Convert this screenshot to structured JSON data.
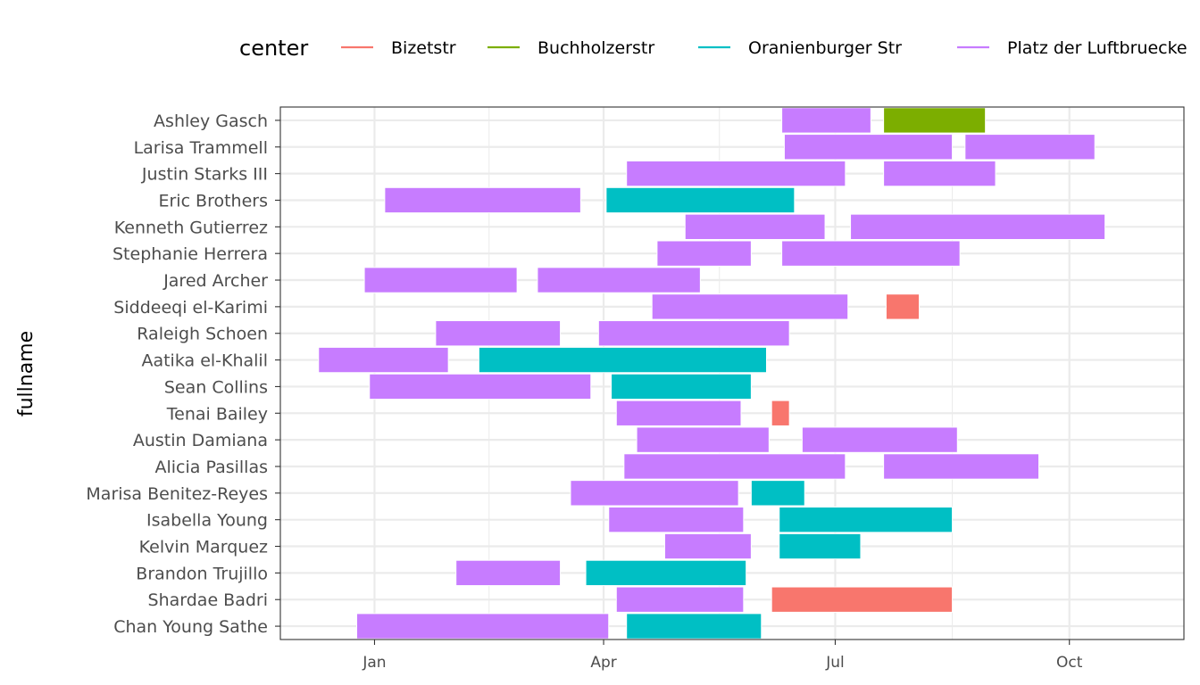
{
  "chart_data": {
    "type": "gantt",
    "ylabel": "fullname",
    "legend": {
      "title": "center",
      "position": "top",
      "entries": [
        {
          "name": "Bizetstr",
          "color": "#F8766D"
        },
        {
          "name": "Buchholzerstr",
          "color": "#7CAE00"
        },
        {
          "name": "Oranienburger Str",
          "color": "#00BFC4"
        },
        {
          "name": "Platz der Luftbruecke",
          "color": "#C77CFF"
        }
      ]
    },
    "x_ticks": [
      {
        "label": "Jan",
        "date": "2021-01-01"
      },
      {
        "label": "Apr",
        "date": "2021-04-01"
      },
      {
        "label": "Jul",
        "date": "2021-07-01"
      },
      {
        "label": "Oct",
        "date": "2021-10-01"
      }
    ],
    "xlim": [
      "2020-11-25",
      "2021-11-15"
    ],
    "grid": true,
    "categories": [
      "Ashley Gasch",
      "Larisa Trammell",
      "Justin Starks III",
      "Eric Brothers",
      "Kenneth Gutierrez",
      "Stephanie Herrera",
      "Jared Archer",
      "Siddeeqi el-Karimi",
      "Raleigh Schoen",
      "Aatika el-Khalil",
      "Sean Collins",
      "Tenai Bailey",
      "Austin Damiana",
      "Alicia Pasillas",
      "Marisa Benitez-Reyes",
      "Isabella Young",
      "Kelvin Marquez",
      "Brandon Trujillo",
      "Shardae Badri",
      "Chan Young Sathe"
    ],
    "tasks": [
      {
        "name": "Ashley Gasch",
        "center": "Platz der Luftbruecke",
        "start": "2021-06-10",
        "end": "2021-07-15"
      },
      {
        "name": "Ashley Gasch",
        "center": "Buchholzerstr",
        "start": "2021-07-20",
        "end": "2021-08-29"
      },
      {
        "name": "Larisa Trammell",
        "center": "Platz der Luftbruecke",
        "start": "2021-06-11",
        "end": "2021-08-16"
      },
      {
        "name": "Larisa Trammell",
        "center": "Platz der Luftbruecke",
        "start": "2021-08-21",
        "end": "2021-10-11"
      },
      {
        "name": "Justin Starks III",
        "center": "Platz der Luftbruecke",
        "start": "2021-04-10",
        "end": "2021-07-05"
      },
      {
        "name": "Justin Starks III",
        "center": "Platz der Luftbruecke",
        "start": "2021-07-20",
        "end": "2021-09-02"
      },
      {
        "name": "Eric Brothers",
        "center": "Platz der Luftbruecke",
        "start": "2021-01-05",
        "end": "2021-03-23"
      },
      {
        "name": "Eric Brothers",
        "center": "Oranienburger Str",
        "start": "2021-04-02",
        "end": "2021-06-15"
      },
      {
        "name": "Kenneth Gutierrez",
        "center": "Platz der Luftbruecke",
        "start": "2021-05-03",
        "end": "2021-06-27"
      },
      {
        "name": "Kenneth Gutierrez",
        "center": "Platz der Luftbruecke",
        "start": "2021-07-07",
        "end": "2021-10-15"
      },
      {
        "name": "Stephanie Herrera",
        "center": "Platz der Luftbruecke",
        "start": "2021-04-22",
        "end": "2021-05-29"
      },
      {
        "name": "Stephanie Herrera",
        "center": "Platz der Luftbruecke",
        "start": "2021-06-10",
        "end": "2021-08-19"
      },
      {
        "name": "Jared Archer",
        "center": "Platz der Luftbruecke",
        "start": "2020-12-28",
        "end": "2021-02-26"
      },
      {
        "name": "Jared Archer",
        "center": "Platz der Luftbruecke",
        "start": "2021-03-06",
        "end": "2021-05-09"
      },
      {
        "name": "Siddeeqi el-Karimi",
        "center": "Platz der Luftbruecke",
        "start": "2021-04-20",
        "end": "2021-07-06"
      },
      {
        "name": "Siddeeqi el-Karimi",
        "center": "Bizetstr",
        "start": "2021-07-21",
        "end": "2021-08-03"
      },
      {
        "name": "Raleigh Schoen",
        "center": "Platz der Luftbruecke",
        "start": "2021-01-25",
        "end": "2021-03-15"
      },
      {
        "name": "Raleigh Schoen",
        "center": "Platz der Luftbruecke",
        "start": "2021-03-30",
        "end": "2021-06-13"
      },
      {
        "name": "Aatika el-Khalil",
        "center": "Platz der Luftbruecke",
        "start": "2020-12-10",
        "end": "2021-01-30"
      },
      {
        "name": "Aatika el-Khalil",
        "center": "Oranienburger Str",
        "start": "2021-02-11",
        "end": "2021-06-04"
      },
      {
        "name": "Sean Collins",
        "center": "Platz der Luftbruecke",
        "start": "2020-12-30",
        "end": "2021-03-27"
      },
      {
        "name": "Sean Collins",
        "center": "Oranienburger Str",
        "start": "2021-04-04",
        "end": "2021-05-29"
      },
      {
        "name": "Tenai Bailey",
        "center": "Platz der Luftbruecke",
        "start": "2021-04-06",
        "end": "2021-05-25"
      },
      {
        "name": "Tenai Bailey",
        "center": "Bizetstr",
        "start": "2021-06-06",
        "end": "2021-06-13"
      },
      {
        "name": "Austin Damiana",
        "center": "Platz der Luftbruecke",
        "start": "2021-04-14",
        "end": "2021-06-05"
      },
      {
        "name": "Austin Damiana",
        "center": "Platz der Luftbruecke",
        "start": "2021-06-18",
        "end": "2021-08-18"
      },
      {
        "name": "Alicia Pasillas",
        "center": "Platz der Luftbruecke",
        "start": "2021-04-09",
        "end": "2021-07-05"
      },
      {
        "name": "Alicia Pasillas",
        "center": "Platz der Luftbruecke",
        "start": "2021-07-20",
        "end": "2021-09-19"
      },
      {
        "name": "Marisa Benitez-Reyes",
        "center": "Platz der Luftbruecke",
        "start": "2021-03-19",
        "end": "2021-05-24"
      },
      {
        "name": "Marisa Benitez-Reyes",
        "center": "Oranienburger Str",
        "start": "2021-05-29",
        "end": "2021-06-19"
      },
      {
        "name": "Isabella Young",
        "center": "Platz der Luftbruecke",
        "start": "2021-04-03",
        "end": "2021-05-26"
      },
      {
        "name": "Isabella Young",
        "center": "Oranienburger Str",
        "start": "2021-06-09",
        "end": "2021-08-16"
      },
      {
        "name": "Kelvin Marquez",
        "center": "Platz der Luftbruecke",
        "start": "2021-04-25",
        "end": "2021-05-29"
      },
      {
        "name": "Kelvin Marquez",
        "center": "Oranienburger Str",
        "start": "2021-06-09",
        "end": "2021-07-11"
      },
      {
        "name": "Brandon Trujillo",
        "center": "Platz der Luftbruecke",
        "start": "2021-02-02",
        "end": "2021-03-15"
      },
      {
        "name": "Brandon Trujillo",
        "center": "Oranienburger Str",
        "start": "2021-03-25",
        "end": "2021-05-27"
      },
      {
        "name": "Shardae Badri",
        "center": "Platz der Luftbruecke",
        "start": "2021-04-06",
        "end": "2021-05-26"
      },
      {
        "name": "Shardae Badri",
        "center": "Bizetstr",
        "start": "2021-06-06",
        "end": "2021-08-16"
      },
      {
        "name": "Chan Young Sathe",
        "center": "Platz der Luftbruecke",
        "start": "2020-12-25",
        "end": "2021-04-03"
      },
      {
        "name": "Chan Young Sathe",
        "center": "Oranienburger Str",
        "start": "2021-04-10",
        "end": "2021-06-02"
      }
    ]
  }
}
